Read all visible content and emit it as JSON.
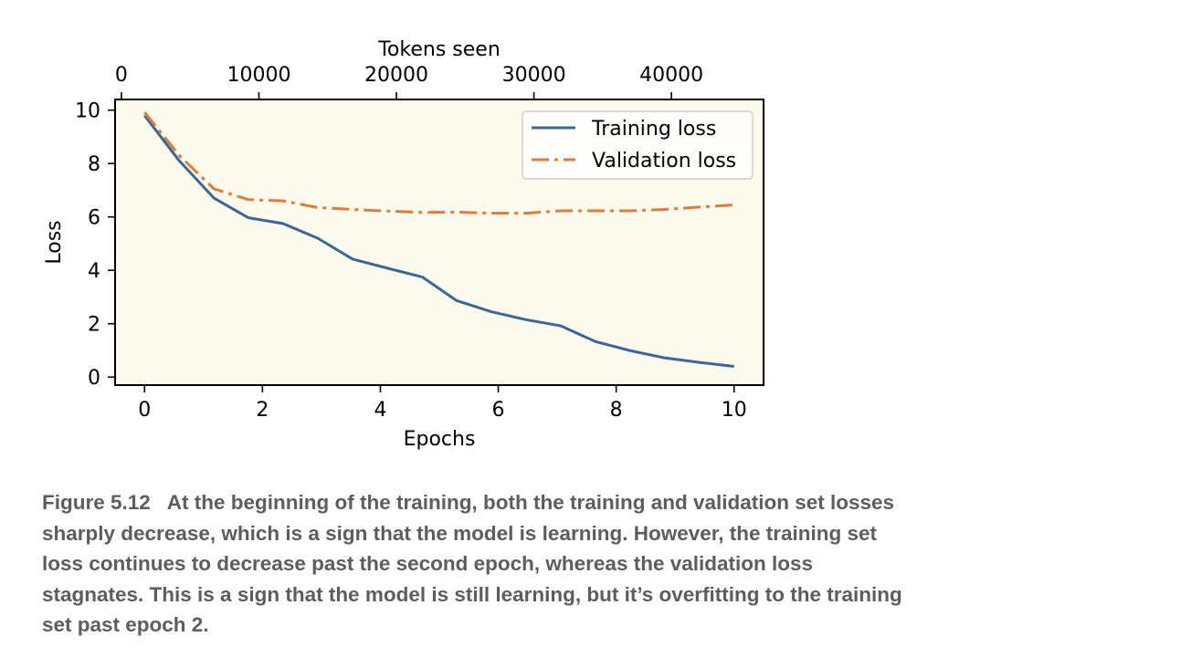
{
  "chart_data": {
    "type": "line",
    "xlabel": "Epochs",
    "ylabel": "Loss",
    "secondary_xlabel": "Tokens seen",
    "xlim": [
      -0.5,
      10.5
    ],
    "ylim": [
      -0.3,
      10.4
    ],
    "xticks": [
      0,
      2,
      4,
      6,
      8,
      10
    ],
    "yticks": [
      0,
      2,
      4,
      6,
      8,
      10
    ],
    "secondary_xlim": [
      -460,
      46700
    ],
    "secondary_xticks": [
      0,
      10000,
      20000,
      30000,
      40000
    ],
    "grid": false,
    "legend_position": "top-right",
    "colors": {
      "train": "#3a6699",
      "val": "#e27b35",
      "plot_bg": "#fcf9ed"
    },
    "x": [
      0.0,
      0.59,
      1.18,
      1.76,
      2.35,
      2.94,
      3.53,
      4.12,
      4.71,
      5.29,
      5.88,
      6.47,
      7.06,
      7.65,
      8.24,
      8.82,
      9.41,
      10.0
    ],
    "series": [
      {
        "name": "Training loss",
        "style": "solid",
        "values": [
          9.8,
          8.1,
          6.7,
          5.97,
          5.75,
          5.2,
          4.42,
          4.08,
          3.75,
          2.87,
          2.45,
          2.15,
          1.92,
          1.33,
          0.99,
          0.72,
          0.55,
          0.4
        ]
      },
      {
        "name": "Validation loss",
        "style": "dashdot",
        "values": [
          9.92,
          8.3,
          7.05,
          6.65,
          6.6,
          6.35,
          6.28,
          6.22,
          6.17,
          6.18,
          6.14,
          6.14,
          6.23,
          6.23,
          6.23,
          6.28,
          6.37,
          6.45
        ]
      }
    ]
  },
  "caption": {
    "figure_number": "Figure 5.12",
    "text": "At the beginning of the training, both the training and validation set losses sharply decrease, which is a sign that the model is learning. However, the training set loss continues to decrease past the second epoch, whereas the validation loss stagnates. This is a sign that the model is still learning, but it’s overfitting to the training set past epoch 2."
  }
}
